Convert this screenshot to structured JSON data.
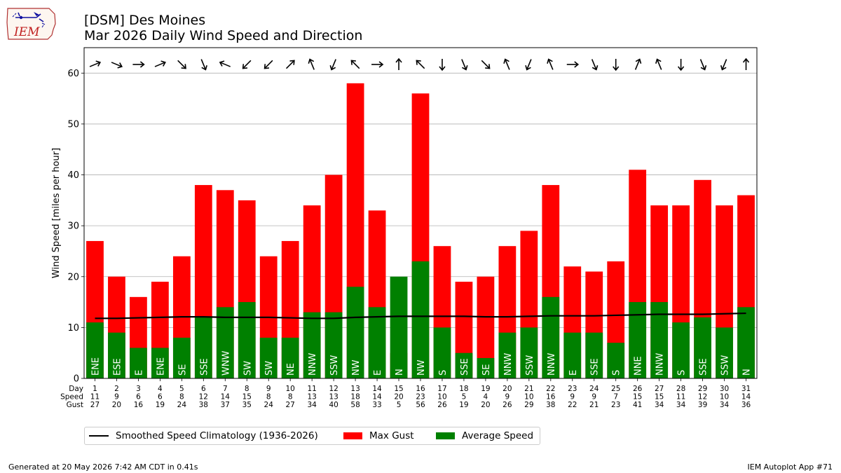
{
  "header": {
    "line1": "[DSM] Des Moines",
    "line2": "Mar 2026 Daily Wind Speed and Direction"
  },
  "logo": {
    "text": "IEM"
  },
  "footer": {
    "left": "Generated at 20 May 2026 7:42 AM CDT in 0.41s",
    "right": "IEM Autoplot App #71"
  },
  "legend": {
    "climo": "Smoothed Speed Climatology (1936-2026)",
    "gust": "Max Gust",
    "avg": "Average Speed"
  },
  "colors": {
    "gust": "#ff0000",
    "avg": "#008000",
    "climo": "#000000",
    "grid": "#b0b0b0"
  },
  "chart_data": {
    "type": "bar",
    "ylabel": "Wind Speed [miles per hour]",
    "ylim": [
      0,
      65
    ],
    "yticks": [
      0,
      10,
      20,
      30,
      40,
      50,
      60
    ],
    "grid": true,
    "legend_position": "bottom-left",
    "row_labels": [
      "Day",
      "Speed",
      "Gust"
    ],
    "days": [
      1,
      2,
      3,
      4,
      5,
      6,
      7,
      8,
      9,
      10,
      11,
      12,
      13,
      14,
      15,
      16,
      17,
      18,
      19,
      20,
      21,
      22,
      23,
      24,
      25,
      26,
      27,
      28,
      29,
      30,
      31
    ],
    "speed": [
      11,
      9,
      6,
      6,
      8,
      12,
      14,
      15,
      8,
      8,
      13,
      13,
      18,
      14,
      20,
      23,
      10,
      5,
      4,
      9,
      10,
      16,
      9,
      9,
      7,
      15,
      15,
      11,
      12,
      10,
      14
    ],
    "gust": [
      27,
      20,
      16,
      19,
      24,
      38,
      37,
      35,
      24,
      27,
      34,
      40,
      58,
      33,
      5,
      56,
      26,
      19,
      20,
      26,
      29,
      38,
      22,
      21,
      23,
      41,
      34,
      34,
      39,
      34,
      36
    ],
    "direction": [
      "ENE",
      "ESE",
      "E",
      "ENE",
      "SE",
      "SSE",
      "WNW",
      "SW",
      "SW",
      "NE",
      "NNW",
      "SSW",
      "NW",
      "E",
      "N",
      "NW",
      "S",
      "SSE",
      "SE",
      "NNW",
      "SSW",
      "NNW",
      "E",
      "SSE",
      "S",
      "NNE",
      "NNW",
      "S",
      "SSE",
      "SSW",
      "N"
    ],
    "climatology": [
      11.8,
      11.8,
      11.9,
      12.0,
      12.1,
      12.1,
      12.0,
      12.0,
      12.0,
      11.9,
      11.8,
      11.8,
      12.0,
      12.1,
      12.2,
      12.2,
      12.2,
      12.2,
      12.1,
      12.1,
      12.2,
      12.3,
      12.3,
      12.3,
      12.4,
      12.5,
      12.6,
      12.6,
      12.6,
      12.7,
      12.8
    ],
    "series": [
      {
        "name": "Max Gust",
        "key": "gust"
      },
      {
        "name": "Average Speed",
        "key": "speed"
      },
      {
        "name": "Smoothed Speed Climatology (1936-2026)",
        "key": "climatology"
      }
    ]
  }
}
